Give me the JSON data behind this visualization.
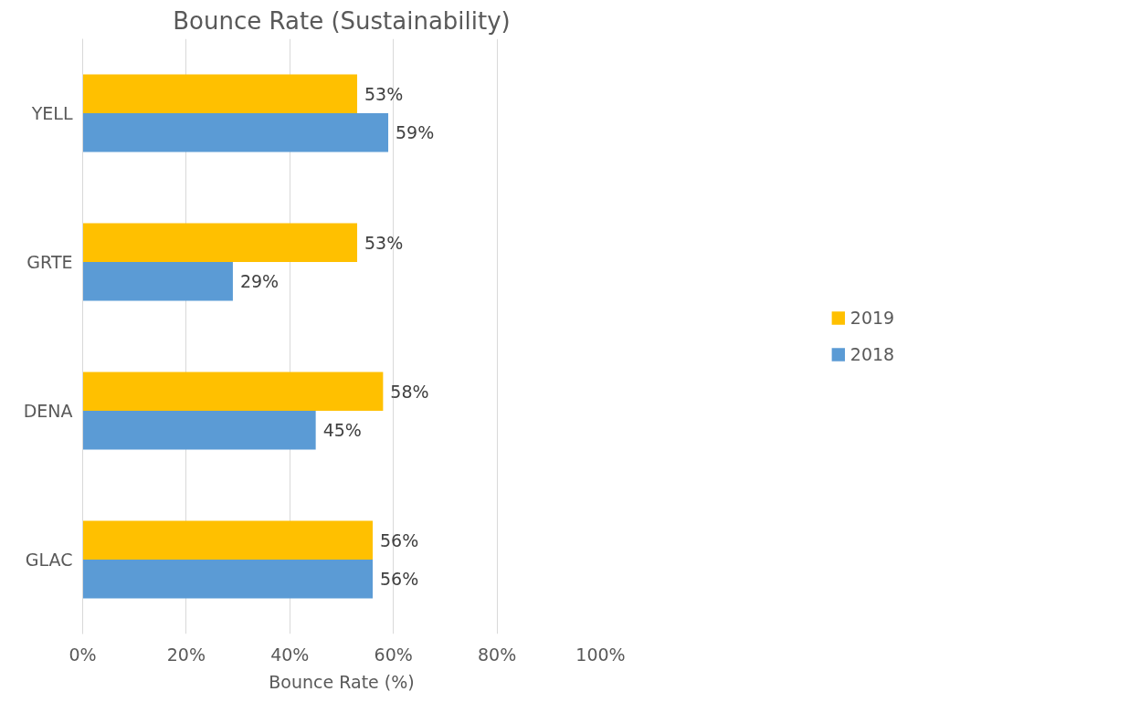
{
  "chart_data": {
    "type": "bar",
    "orientation": "horizontal",
    "title": "Bounce Rate (Sustainability)",
    "xlabel": "Bounce Rate (%)",
    "categories": [
      "YELL",
      "GRTE",
      "DENA",
      "GLAC"
    ],
    "series": [
      {
        "name": "2019",
        "color": "#ffc000",
        "values": [
          53,
          53,
          58,
          56
        ],
        "value_labels": [
          "53%",
          "53%",
          "58%",
          "56%"
        ]
      },
      {
        "name": "2018",
        "color": "#5b9bd5",
        "values": [
          59,
          29,
          45,
          56
        ],
        "value_labels": [
          "59%",
          "29%",
          "45%",
          "56%"
        ]
      }
    ],
    "xlim": [
      0,
      100
    ],
    "xticks": [
      {
        "value": 0,
        "label": "0%"
      },
      {
        "value": 20,
        "label": "20%"
      },
      {
        "value": 40,
        "label": "40%"
      },
      {
        "value": 60,
        "label": "60%"
      },
      {
        "value": 80,
        "label": "80%"
      },
      {
        "value": 100,
        "label": "100%"
      }
    ],
    "grid": "x",
    "legend": "right"
  }
}
